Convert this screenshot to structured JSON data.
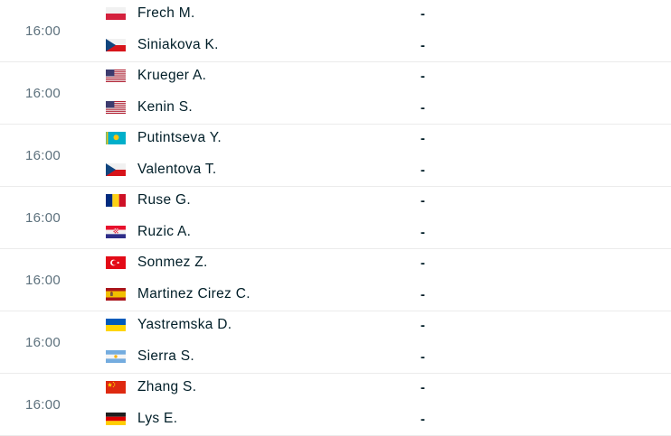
{
  "list": {
    "score_placeholder": "-"
  },
  "colors": {
    "background": "#ffffff",
    "name_text": "#001e28",
    "time_text": "#5d717d",
    "separator": "#ebebeb"
  },
  "matches": [
    {
      "time": "16:00",
      "players": [
        {
          "name": "Frech M.",
          "flag": "poland"
        },
        {
          "name": "Siniakova K.",
          "flag": "czech-republic"
        }
      ],
      "scores": [
        "-",
        "-"
      ]
    },
    {
      "time": "16:00",
      "players": [
        {
          "name": "Krueger A.",
          "flag": "usa"
        },
        {
          "name": "Kenin S.",
          "flag": "usa"
        }
      ],
      "scores": [
        "-",
        "-"
      ]
    },
    {
      "time": "16:00",
      "players": [
        {
          "name": "Putintseva Y.",
          "flag": "kazakhstan"
        },
        {
          "name": "Valentova T.",
          "flag": "czech-republic"
        }
      ],
      "scores": [
        "-",
        "-"
      ]
    },
    {
      "time": "16:00",
      "players": [
        {
          "name": "Ruse G.",
          "flag": "romania"
        },
        {
          "name": "Ruzic A.",
          "flag": "croatia"
        }
      ],
      "scores": [
        "-",
        "-"
      ]
    },
    {
      "time": "16:00",
      "players": [
        {
          "name": "Sonmez Z.",
          "flag": "turkey"
        },
        {
          "name": "Martinez Cirez C.",
          "flag": "spain"
        }
      ],
      "scores": [
        "-",
        "-"
      ]
    },
    {
      "time": "16:00",
      "players": [
        {
          "name": "Yastremska D.",
          "flag": "ukraine"
        },
        {
          "name": "Sierra S.",
          "flag": "argentina"
        }
      ],
      "scores": [
        "-",
        "-"
      ]
    },
    {
      "time": "16:00",
      "players": [
        {
          "name": "Zhang S.",
          "flag": "china"
        },
        {
          "name": "Lys E.",
          "flag": "germany"
        }
      ],
      "scores": [
        "-",
        "-"
      ]
    }
  ]
}
